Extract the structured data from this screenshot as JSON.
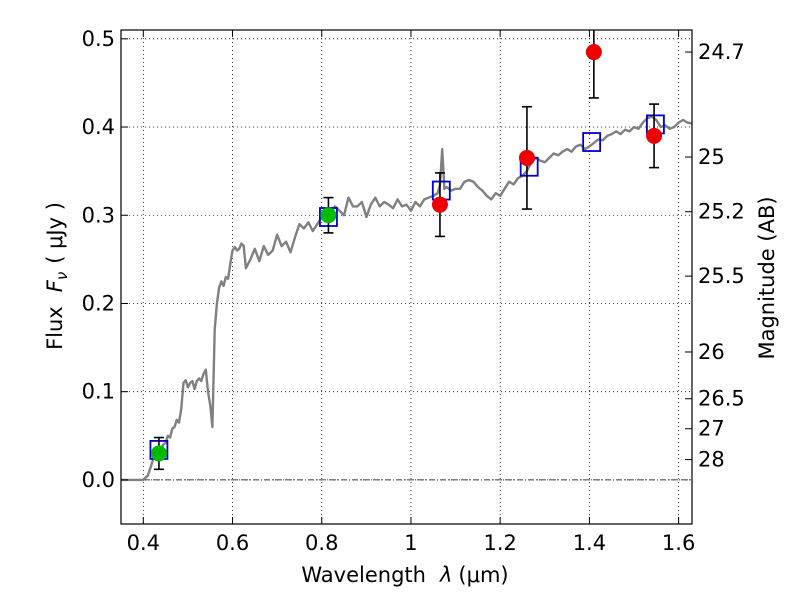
{
  "chart_data": {
    "type": "scatter",
    "xlabel_text": "Wavelength",
    "xlabel_symbol": "λ",
    "xlabel_unit": "(μm)",
    "ylabel_text": "Flux",
    "ylabel_symbol": "F",
    "ylabel_subscript": "ν",
    "ylabel_unit": "( μJy )",
    "y2label": "Magnitude (AB)",
    "xlim": [
      0.35,
      1.63
    ],
    "ylim": [
      -0.05,
      0.51
    ],
    "grid": true,
    "x_ticks": [
      {
        "value": 0.4,
        "label": "0.4"
      },
      {
        "value": 0.6,
        "label": "0.6"
      },
      {
        "value": 0.8,
        "label": "0.8"
      },
      {
        "value": 1.0,
        "label": "1"
      },
      {
        "value": 1.2,
        "label": "1.2"
      },
      {
        "value": 1.4,
        "label": "1.4"
      },
      {
        "value": 1.6,
        "label": "1.6"
      }
    ],
    "y_ticks": [
      {
        "value": 0.0,
        "label": "0.0"
      },
      {
        "value": 0.1,
        "label": "0.1"
      },
      {
        "value": 0.2,
        "label": "0.2"
      },
      {
        "value": 0.3,
        "label": "0.3"
      },
      {
        "value": 0.4,
        "label": "0.4"
      },
      {
        "value": 0.5,
        "label": "0.5"
      }
    ],
    "y2_ticks": [
      {
        "flux": 0.485,
        "label": "24.7"
      },
      {
        "flux": 0.366,
        "label": "25"
      },
      {
        "flux": 0.304,
        "label": "25.2"
      },
      {
        "flux": 0.231,
        "label": "25.5"
      },
      {
        "flux": 0.145,
        "label": "26"
      },
      {
        "flux": 0.092,
        "label": "26.5"
      },
      {
        "flux": 0.058,
        "label": "27"
      },
      {
        "flux": 0.023,
        "label": "28"
      }
    ],
    "series": [
      {
        "kind": "line",
        "color": "#808080",
        "x": [
          0.35,
          0.4,
          0.41,
          0.415,
          0.42,
          0.425,
          0.43,
          0.435,
          0.44,
          0.445,
          0.45,
          0.455,
          0.46,
          0.465,
          0.47,
          0.475,
          0.48,
          0.485,
          0.49,
          0.495,
          0.5,
          0.505,
          0.51,
          0.515,
          0.52,
          0.525,
          0.53,
          0.535,
          0.54,
          0.545,
          0.55,
          0.555,
          0.56,
          0.565,
          0.57,
          0.575,
          0.58,
          0.585,
          0.59,
          0.595,
          0.6,
          0.605,
          0.61,
          0.615,
          0.62,
          0.625,
          0.63,
          0.64,
          0.65,
          0.66,
          0.67,
          0.68,
          0.69,
          0.7,
          0.71,
          0.72,
          0.73,
          0.74,
          0.75,
          0.76,
          0.77,
          0.78,
          0.79,
          0.8,
          0.81,
          0.82,
          0.83,
          0.84,
          0.85,
          0.86,
          0.87,
          0.88,
          0.89,
          0.9,
          0.91,
          0.92,
          0.93,
          0.94,
          0.95,
          0.96,
          0.97,
          0.98,
          0.99,
          1.0,
          1.01,
          1.02,
          1.03,
          1.04,
          1.05,
          1.06,
          1.065,
          1.07,
          1.075,
          1.08,
          1.09,
          1.1,
          1.11,
          1.12,
          1.13,
          1.14,
          1.15,
          1.16,
          1.17,
          1.18,
          1.19,
          1.2,
          1.21,
          1.22,
          1.23,
          1.24,
          1.25,
          1.26,
          1.27,
          1.28,
          1.29,
          1.3,
          1.31,
          1.32,
          1.33,
          1.34,
          1.35,
          1.36,
          1.37,
          1.38,
          1.39,
          1.4,
          1.41,
          1.42,
          1.43,
          1.44,
          1.45,
          1.46,
          1.47,
          1.48,
          1.49,
          1.5,
          1.51,
          1.52,
          1.53,
          1.54,
          1.55,
          1.56,
          1.57,
          1.58,
          1.59,
          1.6,
          1.61,
          1.62,
          1.63
        ],
        "y": [
          0.0,
          0.0,
          0.005,
          0.012,
          0.02,
          0.028,
          0.03,
          0.032,
          0.035,
          0.04,
          0.042,
          0.05,
          0.048,
          0.058,
          0.06,
          0.068,
          0.065,
          0.08,
          0.11,
          0.113,
          0.105,
          0.11,
          0.112,
          0.103,
          0.112,
          0.115,
          0.112,
          0.12,
          0.125,
          0.1,
          0.085,
          0.06,
          0.17,
          0.2,
          0.218,
          0.225,
          0.22,
          0.23,
          0.228,
          0.245,
          0.26,
          0.264,
          0.26,
          0.262,
          0.268,
          0.265,
          0.24,
          0.25,
          0.262,
          0.248,
          0.265,
          0.255,
          0.26,
          0.278,
          0.265,
          0.27,
          0.258,
          0.275,
          0.29,
          0.285,
          0.292,
          0.282,
          0.29,
          0.298,
          0.3,
          0.305,
          0.31,
          0.305,
          0.3,
          0.32,
          0.31,
          0.31,
          0.315,
          0.298,
          0.312,
          0.32,
          0.31,
          0.315,
          0.312,
          0.308,
          0.318,
          0.31,
          0.312,
          0.305,
          0.315,
          0.31,
          0.318,
          0.32,
          0.322,
          0.325,
          0.335,
          0.375,
          0.33,
          0.332,
          0.328,
          0.33,
          0.33,
          0.338,
          0.34,
          0.338,
          0.332,
          0.328,
          0.322,
          0.318,
          0.325,
          0.322,
          0.33,
          0.338,
          0.335,
          0.342,
          0.345,
          0.35,
          0.36,
          0.365,
          0.362,
          0.36,
          0.365,
          0.37,
          0.368,
          0.372,
          0.375,
          0.372,
          0.378,
          0.38,
          0.375,
          0.378,
          0.382,
          0.386,
          0.385,
          0.39,
          0.392,
          0.395,
          0.392,
          0.397,
          0.395,
          0.4,
          0.398,
          0.405,
          0.41,
          0.412,
          0.408,
          0.4,
          0.402,
          0.398,
          0.4,
          0.405,
          0.408,
          0.405,
          0.404
        ]
      },
      {
        "kind": "markers",
        "marker": "square",
        "color": "#0000cc",
        "x": [
          0.435,
          0.815,
          1.068,
          1.265,
          1.405,
          1.548
        ],
        "y": [
          0.034,
          0.298,
          0.328,
          0.355,
          0.383,
          0.403
        ]
      },
      {
        "kind": "markers",
        "marker": "circle",
        "color": "#00bb00",
        "errorbar_color": "#000000",
        "x": [
          0.435,
          0.815
        ],
        "y": [
          0.03,
          0.3
        ],
        "err": [
          0.018,
          0.02
        ]
      },
      {
        "kind": "markers",
        "marker": "circle",
        "color": "#ee0000",
        "errorbar_color": "#000000",
        "x": [
          1.065,
          1.26,
          1.41,
          1.545
        ],
        "y": [
          0.312,
          0.365,
          0.485,
          0.39
        ],
        "err": [
          0.036,
          0.058,
          0.052,
          0.036
        ]
      }
    ]
  }
}
